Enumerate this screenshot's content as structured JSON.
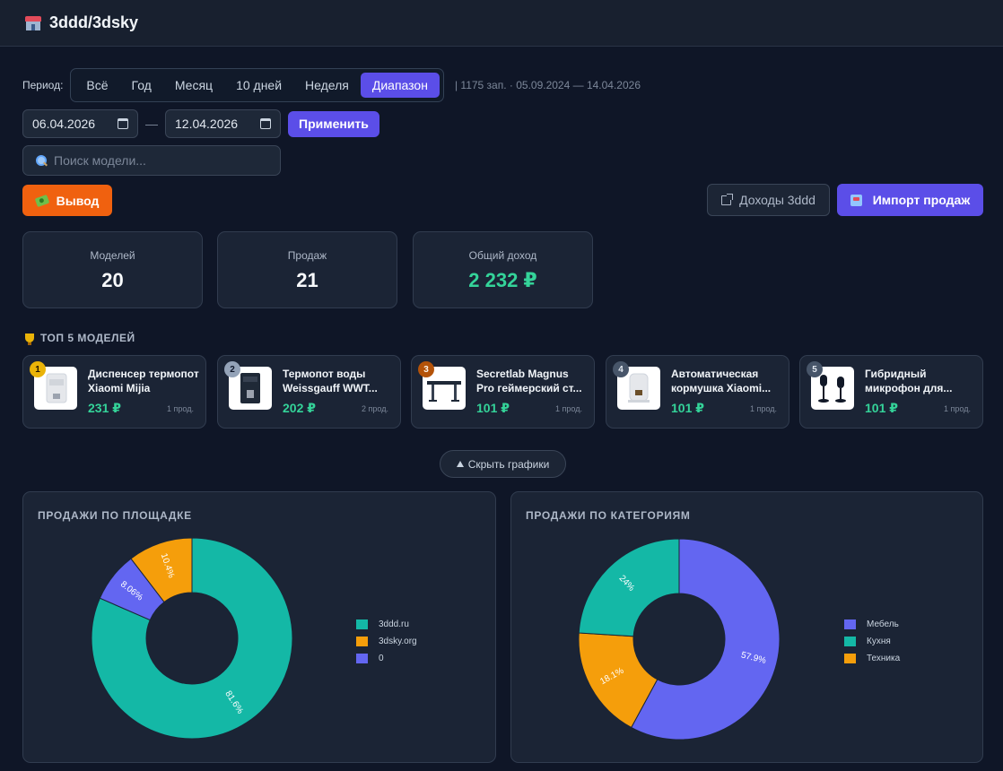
{
  "app": {
    "title": "3ddd/3dsky",
    "icon": "store-icon"
  },
  "period": {
    "label": "Период:",
    "options": [
      "Всё",
      "Год",
      "Месяц",
      "10 дней",
      "Неделя",
      "Диапазон"
    ],
    "active_index": 5,
    "info": "| 1175 зап. · 05.09.2024 — 14.04.2026"
  },
  "range": {
    "from": "06.04.2026",
    "separator": "—",
    "to": "12.04.2026",
    "apply_label": "Применить"
  },
  "search": {
    "placeholder": "Поиск модели...",
    "value": ""
  },
  "actions": {
    "withdraw_label": "Вывод",
    "income_label": "Доходы 3ddd",
    "import_label": "Импорт продаж"
  },
  "stats": [
    {
      "label": "Моделей",
      "value": "20"
    },
    {
      "label": "Продаж",
      "value": "21"
    },
    {
      "label": "Общий доход",
      "value": "2 232 ₽"
    }
  ],
  "top": {
    "title": "ТОП 5 МОДЕЛЕЙ",
    "items": [
      {
        "rank": "1",
        "name": "Диспенсер термопот Xiaomi Mijia",
        "price": "231 ₽",
        "sales": "1 прод."
      },
      {
        "rank": "2",
        "name": "Термопот воды Weissgauff WWT...",
        "price": "202 ₽",
        "sales": "2 прод."
      },
      {
        "rank": "3",
        "name": "Secretlab Magnus Pro геймерский ст...",
        "price": "101 ₽",
        "sales": "1 прод."
      },
      {
        "rank": "4",
        "name": "Автоматическая кормушка Xiaomi...",
        "price": "101 ₽",
        "sales": "1 прод."
      },
      {
        "rank": "5",
        "name": "Гибридный микрофон для...",
        "price": "101 ₽",
        "sales": "1 прод."
      }
    ]
  },
  "toggle_charts_label": "Скрыть графики",
  "colors": {
    "accent": "#5b4ee8",
    "teal": "#14b8a6",
    "orange": "#f59e0b",
    "violet": "#6366f1",
    "green": "#34d399"
  },
  "chart_data": [
    {
      "type": "pie",
      "title": "ПРОДАЖИ ПО ПЛОЩАДКЕ",
      "categories": [
        "3ddd.ru",
        "3dsky.org",
        "0"
      ],
      "values": [
        81.6,
        10.4,
        8.06
      ],
      "labels": [
        "81.6%",
        "10.4%",
        "8.06%"
      ],
      "colors": [
        "#14b8a6",
        "#f59e0b",
        "#6366f1"
      ],
      "donut": true,
      "legend": "right"
    },
    {
      "type": "pie",
      "title": "ПРОДАЖИ ПО КАТЕГОРИЯМ",
      "categories": [
        "Мебель",
        "Кухня",
        "Техника"
      ],
      "values": [
        57.9,
        24,
        18.1
      ],
      "labels": [
        "57.9%",
        "24%",
        "18.1%"
      ],
      "colors": [
        "#6366f1",
        "#14b8a6",
        "#f59e0b"
      ],
      "donut": true,
      "legend": "right"
    }
  ]
}
